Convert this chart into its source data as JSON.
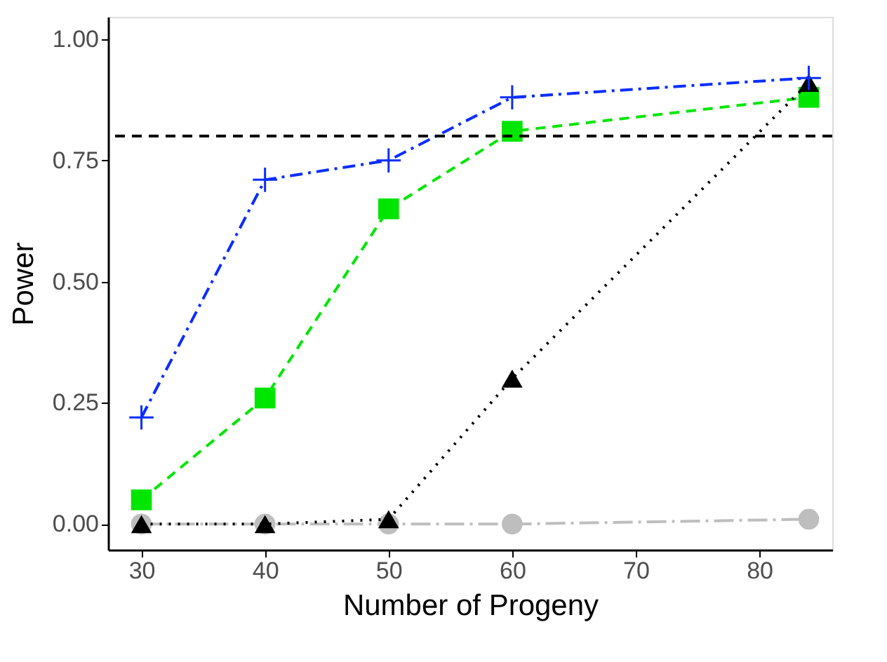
{
  "chart_data": {
    "type": "line",
    "xlabel": "Number of Progeny",
    "ylabel": "Power",
    "xlim": [
      27.3,
      85.9
    ],
    "xticks": [
      30,
      40,
      50,
      60,
      70,
      80
    ],
    "ylim": [
      -0.053,
      1.046
    ],
    "yticks": [
      {
        "value": 0,
        "label": "0.00"
      },
      {
        "value": 0.25,
        "label": "0.25"
      },
      {
        "value": 0.5,
        "label": "0.50"
      },
      {
        "value": 0.75,
        "label": "0.75"
      },
      {
        "value": 1,
        "label": "1.00"
      }
    ],
    "grid": false,
    "ref_lines": [
      {
        "axis": "y",
        "value": 0.8,
        "color": "#000000",
        "line_style": "dashed"
      }
    ],
    "series": [
      {
        "color": "#bebebe",
        "x": [
          30,
          40,
          50,
          60,
          84
        ],
        "values": [
          0,
          0,
          0,
          0,
          0.01
        ],
        "marker": "circle",
        "line_style": "longdashdot"
      },
      {
        "color": "#00e600",
        "x": [
          30,
          40,
          50,
          60,
          84
        ],
        "values": [
          0.05,
          0.26,
          0.65,
          0.81,
          0.88
        ],
        "marker": "square",
        "line_style": "dashed"
      },
      {
        "color": "#000000",
        "x": [
          30,
          40,
          50,
          60,
          84
        ],
        "values": [
          0,
          0,
          0.01,
          0.3,
          0.91
        ],
        "marker": "triangle",
        "line_style": "dotted"
      },
      {
        "color": "#0a2eff",
        "x": [
          30,
          40,
          50,
          60,
          84
        ],
        "values": [
          0.22,
          0.71,
          0.75,
          0.88,
          0.92
        ],
        "marker": "cross",
        "line_style": "dashdot"
      }
    ]
  }
}
